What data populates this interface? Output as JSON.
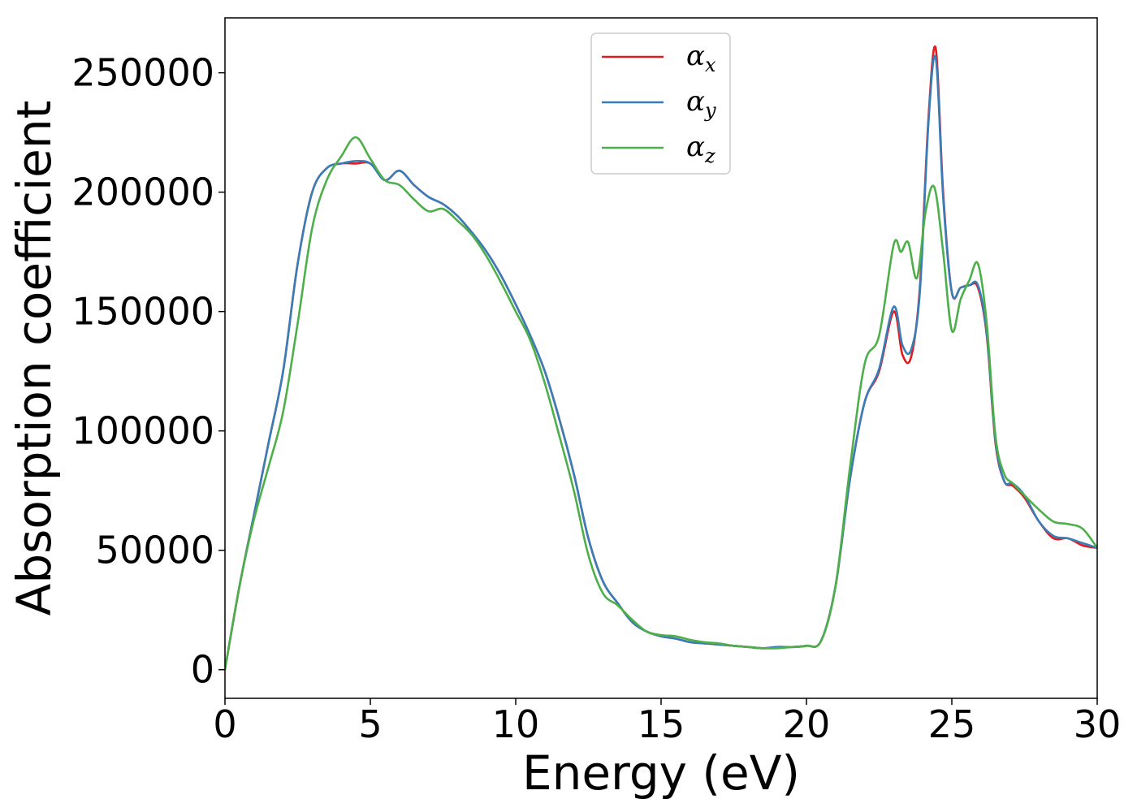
{
  "chart_data": {
    "type": "line",
    "xlabel": "Energy (eV)",
    "ylabel": "Absorption coefficient",
    "xlim": [
      0,
      30
    ],
    "ylim": [
      -12000,
      273000
    ],
    "xticks": [
      0,
      5,
      10,
      15,
      20,
      25,
      30
    ],
    "yticks": [
      0,
      50000,
      100000,
      150000,
      200000,
      250000
    ],
    "grid": false,
    "legend_position": "top-center",
    "series": [
      {
        "name": "α",
        "subscript": "x",
        "color": "#e41a1c",
        "x": [
          0,
          0.5,
          1,
          1.5,
          2,
          2.5,
          3,
          3.5,
          4,
          4.5,
          5,
          5.5,
          6,
          6.5,
          7,
          7.5,
          8,
          8.5,
          9,
          9.5,
          10,
          10.5,
          11,
          11.5,
          12,
          12.5,
          13,
          13.5,
          14,
          14.5,
          15,
          15.5,
          16,
          16.5,
          17,
          17.5,
          18,
          18.5,
          19,
          19.5,
          20,
          20.5,
          21,
          21.5,
          22,
          22.5,
          23,
          23.3,
          23.6,
          23.9,
          24.2,
          24.45,
          24.7,
          25,
          25.3,
          25.6,
          25.9,
          26.2,
          26.5,
          26.8,
          27.1,
          27.5,
          28,
          28.5,
          29,
          29.5,
          30
        ],
        "y": [
          0,
          35000,
          65000,
          95000,
          125000,
          170000,
          200000,
          210000,
          212000,
          212000,
          212000,
          205000,
          209000,
          203000,
          198000,
          195000,
          190000,
          183000,
          175000,
          165000,
          153000,
          140000,
          125000,
          105000,
          82000,
          55000,
          37000,
          28000,
          20000,
          16000,
          14000,
          13000,
          11500,
          11000,
          10500,
          10000,
          9500,
          9000,
          9500,
          9500,
          10000,
          12000,
          35000,
          80000,
          112000,
          125000,
          150000,
          132000,
          131000,
          160000,
          232000,
          260000,
          200000,
          158000,
          160000,
          161000,
          160000,
          140000,
          95000,
          79000,
          77000,
          72000,
          62000,
          55000,
          55000,
          52000,
          51000
        ]
      },
      {
        "name": "α",
        "subscript": "y",
        "color": "#377eb8",
        "x": [
          0,
          0.5,
          1,
          1.5,
          2,
          2.5,
          3,
          3.5,
          4,
          4.5,
          5,
          5.5,
          6,
          6.5,
          7,
          7.5,
          8,
          8.5,
          9,
          9.5,
          10,
          10.5,
          11,
          11.5,
          12,
          12.5,
          13,
          13.5,
          14,
          14.5,
          15,
          15.5,
          16,
          16.5,
          17,
          17.5,
          18,
          18.5,
          19,
          19.5,
          20,
          20.5,
          21,
          21.5,
          22,
          22.5,
          23,
          23.3,
          23.6,
          23.9,
          24.2,
          24.45,
          24.7,
          25,
          25.3,
          25.6,
          25.9,
          26.2,
          26.5,
          26.8,
          27.1,
          27.5,
          28,
          28.5,
          29,
          29.5,
          30
        ],
        "y": [
          0,
          35000,
          65000,
          95000,
          125000,
          170000,
          200000,
          210000,
          212000,
          213000,
          212000,
          205000,
          209000,
          203000,
          198000,
          195000,
          190000,
          183000,
          175000,
          165000,
          153000,
          140000,
          125000,
          105000,
          82000,
          55000,
          37000,
          28000,
          20000,
          16000,
          14000,
          13000,
          11500,
          11000,
          10500,
          10000,
          9500,
          9000,
          9500,
          9500,
          10000,
          12000,
          35000,
          80000,
          112000,
          126000,
          152000,
          136000,
          134000,
          158000,
          230000,
          256000,
          198000,
          158000,
          160000,
          161000,
          161000,
          141000,
          96000,
          79000,
          78000,
          73000,
          62000,
          56000,
          55000,
          53000,
          51000
        ]
      },
      {
        "name": "α",
        "subscript": "z",
        "color": "#4daf4a",
        "x": [
          0,
          0.5,
          1,
          1.5,
          2,
          2.5,
          3,
          3.5,
          4,
          4.5,
          5,
          5.5,
          6,
          6.5,
          7,
          7.5,
          8,
          8.5,
          9,
          9.5,
          10,
          10.5,
          11,
          11.5,
          12,
          12.5,
          13,
          13.5,
          14,
          14.5,
          15,
          15.5,
          16,
          16.5,
          17,
          17.5,
          18,
          18.5,
          19,
          19.5,
          20,
          20.5,
          21,
          21.5,
          22,
          22.5,
          23,
          23.25,
          23.5,
          23.8,
          24.1,
          24.4,
          24.7,
          25,
          25.3,
          25.6,
          25.9,
          26.2,
          26.5,
          26.8,
          27.1,
          27.5,
          28,
          28.5,
          29,
          29.5,
          30
        ],
        "y": [
          0,
          35000,
          63000,
          85000,
          108000,
          145000,
          185000,
          205000,
          215000,
          223000,
          214000,
          205000,
          203000,
          197000,
          192000,
          193000,
          188000,
          182000,
          173000,
          162000,
          150000,
          138000,
          120000,
          98000,
          75000,
          48000,
          32000,
          27000,
          21000,
          16000,
          14500,
          14000,
          12500,
          11500,
          11000,
          10000,
          9500,
          9000,
          9000,
          9500,
          10000,
          12000,
          35000,
          85000,
          128000,
          140000,
          178000,
          175000,
          179000,
          164000,
          192000,
          202000,
          175000,
          142000,
          155000,
          163000,
          170000,
          145000,
          98000,
          82000,
          78000,
          73000,
          67000,
          62000,
          61000,
          59000,
          51000
        ]
      }
    ]
  }
}
